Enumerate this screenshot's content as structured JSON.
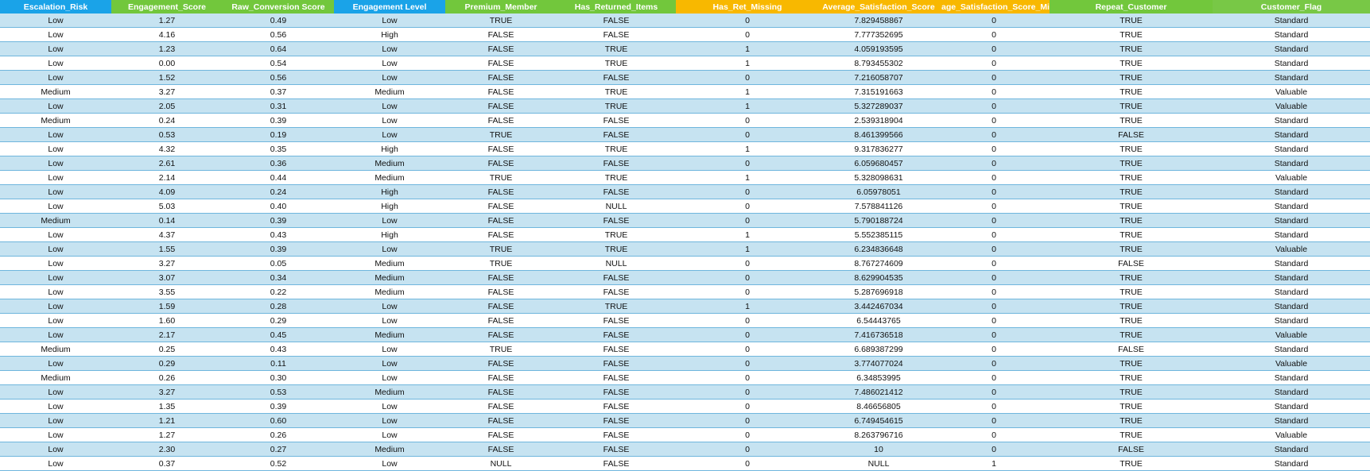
{
  "headers": [
    {
      "label": "Escalation_Risk",
      "color": "blue"
    },
    {
      "label": "Engagement_Score",
      "color": "green"
    },
    {
      "label": "Raw_Conversion Score",
      "color": "green"
    },
    {
      "label": "Engagement Level",
      "color": "blue"
    },
    {
      "label": "Premium_Member",
      "color": "green"
    },
    {
      "label": "Has_Returned_Items",
      "color": "green"
    },
    {
      "label": "Has_Ret_Missing",
      "color": "orange"
    },
    {
      "label": "Average_Satisfaction_Score",
      "color": "orange"
    },
    {
      "label": "age_Satisfaction_Score_Mis",
      "color": "orange"
    },
    {
      "label": "Repeat_Customer",
      "color": "green"
    },
    {
      "label": "Customer_Flag",
      "color": "lgreen"
    }
  ],
  "colors": {
    "header_blue": "#1aa3e8",
    "header_green": "#72c73c",
    "header_orange": "#f8b800",
    "band_blue": "#c6e3f1",
    "row_border": "#6fb6dd"
  },
  "rows": [
    [
      "Low",
      "1.27",
      "0.49",
      "Low",
      "TRUE",
      "FALSE",
      "0",
      "7.829458867",
      "0",
      "TRUE",
      "Standard"
    ],
    [
      "Low",
      "4.16",
      "0.56",
      "High",
      "FALSE",
      "FALSE",
      "0",
      "7.777352695",
      "0",
      "TRUE",
      "Standard"
    ],
    [
      "Low",
      "1.23",
      "0.64",
      "Low",
      "FALSE",
      "TRUE",
      "1",
      "4.059193595",
      "0",
      "TRUE",
      "Standard"
    ],
    [
      "Low",
      "0.00",
      "0.54",
      "Low",
      "FALSE",
      "TRUE",
      "1",
      "8.793455302",
      "0",
      "TRUE",
      "Standard"
    ],
    [
      "Low",
      "1.52",
      "0.56",
      "Low",
      "FALSE",
      "FALSE",
      "0",
      "7.216058707",
      "0",
      "TRUE",
      "Standard"
    ],
    [
      "Medium",
      "3.27",
      "0.37",
      "Medium",
      "FALSE",
      "TRUE",
      "1",
      "7.315191663",
      "0",
      "TRUE",
      "Valuable"
    ],
    [
      "Low",
      "2.05",
      "0.31",
      "Low",
      "FALSE",
      "TRUE",
      "1",
      "5.327289037",
      "0",
      "TRUE",
      "Valuable"
    ],
    [
      "Medium",
      "0.24",
      "0.39",
      "Low",
      "FALSE",
      "FALSE",
      "0",
      "2.539318904",
      "0",
      "TRUE",
      "Standard"
    ],
    [
      "Low",
      "0.53",
      "0.19",
      "Low",
      "TRUE",
      "FALSE",
      "0",
      "8.461399566",
      "0",
      "FALSE",
      "Standard"
    ],
    [
      "Low",
      "4.32",
      "0.35",
      "High",
      "FALSE",
      "TRUE",
      "1",
      "9.317836277",
      "0",
      "TRUE",
      "Standard"
    ],
    [
      "Low",
      "2.61",
      "0.36",
      "Medium",
      "FALSE",
      "FALSE",
      "0",
      "6.059680457",
      "0",
      "TRUE",
      "Standard"
    ],
    [
      "Low",
      "2.14",
      "0.44",
      "Medium",
      "TRUE",
      "TRUE",
      "1",
      "5.328098631",
      "0",
      "TRUE",
      "Valuable"
    ],
    [
      "Low",
      "4.09",
      "0.24",
      "High",
      "FALSE",
      "FALSE",
      "0",
      "6.05978051",
      "0",
      "TRUE",
      "Standard"
    ],
    [
      "Low",
      "5.03",
      "0.40",
      "High",
      "FALSE",
      "NULL",
      "0",
      "7.578841126",
      "0",
      "TRUE",
      "Standard"
    ],
    [
      "Medium",
      "0.14",
      "0.39",
      "Low",
      "FALSE",
      "FALSE",
      "0",
      "5.790188724",
      "0",
      "TRUE",
      "Standard"
    ],
    [
      "Low",
      "4.37",
      "0.43",
      "High",
      "FALSE",
      "TRUE",
      "1",
      "5.552385115",
      "0",
      "TRUE",
      "Standard"
    ],
    [
      "Low",
      "1.55",
      "0.39",
      "Low",
      "TRUE",
      "TRUE",
      "1",
      "6.234836648",
      "0",
      "TRUE",
      "Valuable"
    ],
    [
      "Low",
      "3.27",
      "0.05",
      "Medium",
      "TRUE",
      "NULL",
      "0",
      "8.767274609",
      "0",
      "FALSE",
      "Standard"
    ],
    [
      "Low",
      "3.07",
      "0.34",
      "Medium",
      "FALSE",
      "FALSE",
      "0",
      "8.629904535",
      "0",
      "TRUE",
      "Standard"
    ],
    [
      "Low",
      "3.55",
      "0.22",
      "Medium",
      "FALSE",
      "FALSE",
      "0",
      "5.287696918",
      "0",
      "TRUE",
      "Standard"
    ],
    [
      "Low",
      "1.59",
      "0.28",
      "Low",
      "FALSE",
      "TRUE",
      "1",
      "3.442467034",
      "0",
      "TRUE",
      "Standard"
    ],
    [
      "Low",
      "1.60",
      "0.29",
      "Low",
      "FALSE",
      "FALSE",
      "0",
      "6.54443765",
      "0",
      "TRUE",
      "Standard"
    ],
    [
      "Low",
      "2.17",
      "0.45",
      "Medium",
      "FALSE",
      "FALSE",
      "0",
      "7.416736518",
      "0",
      "TRUE",
      "Valuable"
    ],
    [
      "Medium",
      "0.25",
      "0.43",
      "Low",
      "TRUE",
      "FALSE",
      "0",
      "6.689387299",
      "0",
      "FALSE",
      "Standard"
    ],
    [
      "Low",
      "0.29",
      "0.11",
      "Low",
      "FALSE",
      "FALSE",
      "0",
      "3.774077024",
      "0",
      "TRUE",
      "Valuable"
    ],
    [
      "Medium",
      "0.26",
      "0.30",
      "Low",
      "FALSE",
      "FALSE",
      "0",
      "6.34853995",
      "0",
      "TRUE",
      "Standard"
    ],
    [
      "Low",
      "3.27",
      "0.53",
      "Medium",
      "FALSE",
      "FALSE",
      "0",
      "7.486021412",
      "0",
      "TRUE",
      "Standard"
    ],
    [
      "Low",
      "1.35",
      "0.39",
      "Low",
      "FALSE",
      "FALSE",
      "0",
      "8.46656805",
      "0",
      "TRUE",
      "Standard"
    ],
    [
      "Low",
      "1.21",
      "0.60",
      "Low",
      "FALSE",
      "FALSE",
      "0",
      "6.749454615",
      "0",
      "TRUE",
      "Standard"
    ],
    [
      "Low",
      "1.27",
      "0.26",
      "Low",
      "FALSE",
      "FALSE",
      "0",
      "8.263796716",
      "0",
      "TRUE",
      "Valuable"
    ],
    [
      "Low",
      "2.30",
      "0.27",
      "Medium",
      "FALSE",
      "FALSE",
      "0",
      "10",
      "0",
      "FALSE",
      "Standard"
    ],
    [
      "Low",
      "0.37",
      "0.52",
      "Low",
      "NULL",
      "FALSE",
      "0",
      "NULL",
      "1",
      "TRUE",
      "Standard"
    ]
  ]
}
